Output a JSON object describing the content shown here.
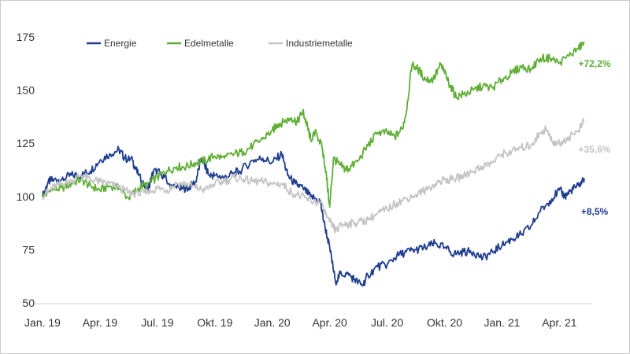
{
  "chart_data": {
    "type": "line",
    "title": "",
    "xlabel": "",
    "ylabel": "",
    "ylim": [
      50,
      175
    ],
    "yticks": [
      50,
      75,
      100,
      125,
      150,
      175
    ],
    "xticks": [
      {
        "label": "Jan. 19",
        "t": 0
      },
      {
        "label": "Apr. 19",
        "t": 3
      },
      {
        "label": "Jul. 19",
        "t": 6
      },
      {
        "label": "Okt. 19",
        "t": 9
      },
      {
        "label": "Jan. 20",
        "t": 12
      },
      {
        "label": "Apr. 20",
        "t": 15
      },
      {
        "label": "Jul. 20",
        "t": 18
      },
      {
        "label": "Okt. 20",
        "t": 21
      },
      {
        "label": "Jan. 21",
        "t": 24
      },
      {
        "label": "Apr. 21",
        "t": 27
      }
    ],
    "x_range_months": [
      0,
      28.3
    ],
    "series": [
      {
        "name": "Energie",
        "color": "#1f3d8f",
        "end_label": "+8,5%",
        "points": [
          [
            0,
            100
          ],
          [
            0.3,
            107
          ],
          [
            0.6,
            108
          ],
          [
            1,
            108
          ],
          [
            1.5,
            110
          ],
          [
            2,
            110
          ],
          [
            2.5,
            112
          ],
          [
            3,
            117
          ],
          [
            3.5,
            120
          ],
          [
            4,
            122
          ],
          [
            4.3,
            118
          ],
          [
            4.7,
            117
          ],
          [
            5,
            110
          ],
          [
            5.5,
            103
          ],
          [
            5.8,
            112
          ],
          [
            6.2,
            111
          ],
          [
            6.6,
            106
          ],
          [
            7,
            104
          ],
          [
            7.3,
            104
          ],
          [
            7.6,
            104
          ],
          [
            8,
            107
          ],
          [
            8.3,
            118
          ],
          [
            8.7,
            110
          ],
          [
            9,
            110
          ],
          [
            9.5,
            109
          ],
          [
            10,
            111
          ],
          [
            10.3,
            112
          ],
          [
            11,
            117
          ],
          [
            11.5,
            118
          ],
          [
            12,
            116
          ],
          [
            12.5,
            120
          ],
          [
            12.8,
            110
          ],
          [
            13.2,
            106
          ],
          [
            13.6,
            104
          ],
          [
            14,
            100
          ],
          [
            14.5,
            98
          ],
          [
            14.7,
            88
          ],
          [
            15,
            76
          ],
          [
            15.3,
            60
          ],
          [
            15.6,
            64
          ],
          [
            16,
            63
          ],
          [
            16.3,
            61
          ],
          [
            16.7,
            58
          ],
          [
            17,
            63
          ],
          [
            17.5,
            67
          ],
          [
            18,
            68
          ],
          [
            18.5,
            72
          ],
          [
            19,
            74
          ],
          [
            19.5,
            75
          ],
          [
            20,
            76
          ],
          [
            20.5,
            78
          ],
          [
            21,
            76
          ],
          [
            21.5,
            73
          ],
          [
            22,
            74
          ],
          [
            22.5,
            74
          ],
          [
            23,
            71
          ],
          [
            23.5,
            74
          ],
          [
            24,
            77
          ],
          [
            24.5,
            80
          ],
          [
            25,
            82
          ],
          [
            25.5,
            86
          ],
          [
            26,
            93
          ],
          [
            26.5,
            98
          ],
          [
            27,
            103
          ],
          [
            27.3,
            100
          ],
          [
            27.6,
            103
          ],
          [
            28,
            105
          ],
          [
            28.3,
            108.5
          ]
        ]
      },
      {
        "name": "Edelmetalle",
        "color": "#5fae35",
        "end_label": "+72,2%",
        "points": [
          [
            0,
            100
          ],
          [
            0.5,
            103
          ],
          [
            1,
            104
          ],
          [
            1.5,
            106
          ],
          [
            2,
            108
          ],
          [
            2.5,
            105
          ],
          [
            3,
            103
          ],
          [
            3.5,
            105
          ],
          [
            4,
            104
          ],
          [
            4.5,
            99
          ],
          [
            5,
            104
          ],
          [
            5.5,
            106
          ],
          [
            6,
            109
          ],
          [
            6.5,
            112
          ],
          [
            7,
            114
          ],
          [
            7.5,
            114
          ],
          [
            8,
            116
          ],
          [
            8.5,
            117
          ],
          [
            9,
            119
          ],
          [
            9.5,
            118
          ],
          [
            10,
            120
          ],
          [
            10.5,
            121
          ],
          [
            11,
            124
          ],
          [
            11.5,
            127
          ],
          [
            12,
            131
          ],
          [
            12.3,
            134
          ],
          [
            12.6,
            135
          ],
          [
            13,
            137
          ],
          [
            13.3,
            135
          ],
          [
            13.6,
            140
          ],
          [
            13.8,
            134
          ],
          [
            14,
            127
          ],
          [
            14.3,
            130
          ],
          [
            14.6,
            123
          ],
          [
            14.8,
            112
          ],
          [
            15,
            95
          ],
          [
            15.2,
            118
          ],
          [
            15.5,
            115
          ],
          [
            15.8,
            113
          ],
          [
            16,
            113
          ],
          [
            16.5,
            117
          ],
          [
            17,
            124
          ],
          [
            17.5,
            130
          ],
          [
            18,
            130
          ],
          [
            18.4,
            128
          ],
          [
            18.8,
            132
          ],
          [
            19,
            140
          ],
          [
            19.3,
            162
          ],
          [
            19.6,
            160
          ],
          [
            20,
            155
          ],
          [
            20.4,
            155
          ],
          [
            20.8,
            162
          ],
          [
            21,
            158
          ],
          [
            21.3,
            152
          ],
          [
            21.6,
            147
          ],
          [
            22,
            148
          ],
          [
            22.5,
            150
          ],
          [
            23,
            152
          ],
          [
            23.5,
            151
          ],
          [
            24,
            155
          ],
          [
            24.5,
            158
          ],
          [
            25,
            161
          ],
          [
            25.5,
            160
          ],
          [
            26,
            165
          ],
          [
            26.5,
            165
          ],
          [
            27,
            163
          ],
          [
            27.5,
            166
          ],
          [
            28,
            170
          ],
          [
            28.3,
            172.2
          ]
        ]
      },
      {
        "name": "Industriemetalle",
        "color": "#c4c4c4",
        "end_label": "+35,6%",
        "points": [
          [
            0,
            100
          ],
          [
            0.5,
            104
          ],
          [
            1,
            106
          ],
          [
            1.5,
            107
          ],
          [
            2,
            110
          ],
          [
            2.5,
            108
          ],
          [
            3,
            107
          ],
          [
            3.5,
            106
          ],
          [
            4,
            104
          ],
          [
            4.5,
            102
          ],
          [
            5,
            101
          ],
          [
            5.5,
            102
          ],
          [
            6,
            104
          ],
          [
            6.5,
            103
          ],
          [
            7,
            106
          ],
          [
            7.5,
            106
          ],
          [
            8,
            104
          ],
          [
            8.5,
            103
          ],
          [
            9,
            106
          ],
          [
            9.5,
            107
          ],
          [
            10,
            109
          ],
          [
            10.5,
            108
          ],
          [
            11,
            107
          ],
          [
            11.5,
            107
          ],
          [
            12,
            106
          ],
          [
            12.5,
            106
          ],
          [
            13,
            102
          ],
          [
            13.5,
            100
          ],
          [
            14,
            98
          ],
          [
            14.5,
            97
          ],
          [
            15,
            88
          ],
          [
            15.3,
            84
          ],
          [
            15.7,
            87
          ],
          [
            16,
            87
          ],
          [
            16.5,
            88
          ],
          [
            17,
            89
          ],
          [
            17.5,
            92
          ],
          [
            18,
            94
          ],
          [
            18.5,
            97
          ],
          [
            19,
            99
          ],
          [
            19.5,
            101
          ],
          [
            20,
            103
          ],
          [
            20.5,
            106
          ],
          [
            21,
            108
          ],
          [
            21.5,
            108
          ],
          [
            22,
            110
          ],
          [
            22.5,
            112
          ],
          [
            23,
            114
          ],
          [
            23.5,
            116
          ],
          [
            24,
            120
          ],
          [
            24.5,
            121
          ],
          [
            25,
            123
          ],
          [
            25.5,
            124
          ],
          [
            26,
            130
          ],
          [
            26.3,
            132
          ],
          [
            26.6,
            126
          ],
          [
            27,
            125
          ],
          [
            27.5,
            128
          ],
          [
            28,
            131
          ],
          [
            28.3,
            135.6
          ]
        ]
      }
    ]
  }
}
